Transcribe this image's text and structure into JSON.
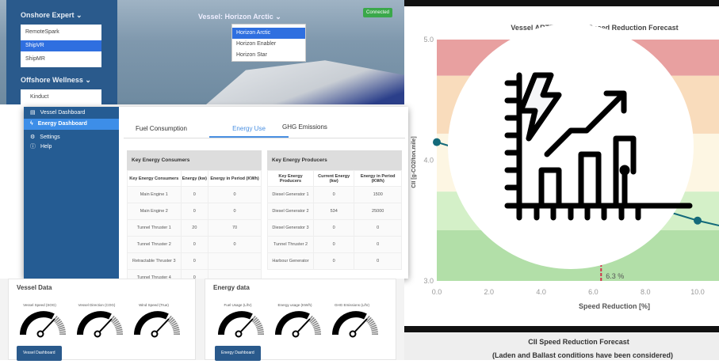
{
  "top": {
    "sections": [
      {
        "label": "Onshore Expert",
        "options": [
          "RemoteSpark",
          "ShipVR",
          "ShipMR"
        ],
        "selected": "ShipVR"
      },
      {
        "label": "Offshore Wellness",
        "options": [
          "Kinduct"
        ]
      }
    ],
    "vessel_label": "Vessel: Horizon Arctic",
    "vessel_options": [
      "Horizon Arctic",
      "Horizon Enabler",
      "Horizon Star"
    ],
    "vessel_selected": "Horizon Arctic",
    "status": "Connected"
  },
  "dashboard": {
    "nav": [
      {
        "label": "Vessel Dashboard",
        "icon": "ship-icon"
      },
      {
        "label": "Energy Dashboard",
        "icon": "bolt-icon",
        "active": true
      },
      {
        "label": "Settings",
        "icon": "gear-icon"
      },
      {
        "label": "Help",
        "icon": "help-icon"
      }
    ],
    "tabs": [
      "Fuel Consumption",
      "Energy Use",
      "GHG Emissions"
    ],
    "active_tab": "Energy Use",
    "consumers": {
      "title": "Key Energy Consumers",
      "headers": [
        "Key Energy Consumers",
        "Energy (kw)",
        "Energy in Period (KWh)"
      ],
      "rows": [
        [
          "Main Engine 1",
          "0",
          "0"
        ],
        [
          "Main Engine 2",
          "0",
          "0"
        ],
        [
          "Tunnel Thruster 1",
          "20",
          "70"
        ],
        [
          "Tunnel Thruster 2",
          "0",
          "0"
        ],
        [
          "Retractable Thruster 3",
          "0",
          ""
        ],
        [
          "Tunnel Thruster 4",
          "0",
          ""
        ]
      ]
    },
    "producers": {
      "title": "Key Energy Producers",
      "headers": [
        "Key Energy Producers",
        "Current Energy (kw)",
        "Energy in Period (KWh)"
      ],
      "rows": [
        [
          "Diesel Generator 1",
          "0",
          "1500"
        ],
        [
          "Diesel Generator 2",
          "534",
          "25000"
        ],
        [
          "Diesel Generator 3",
          "0",
          "0"
        ],
        [
          "Tunnel Thruster 2",
          "0",
          "0"
        ],
        [
          "Harbour Generator",
          "0",
          "0"
        ]
      ]
    }
  },
  "bottom": {
    "vessel": {
      "title": "Vessel  Data",
      "gauges": [
        "Vessel Speed (SOG)",
        "Vessel Direction (COG)",
        "Wind Speed (True)"
      ],
      "button": "Vessel Dashboard"
    },
    "energy": {
      "title": "Energy data",
      "gauges": [
        "Fuel Usage (L/hr)",
        "Energy usage (KW/h)",
        "GHG Emissions (L/hr)"
      ],
      "button": "Energy Dashboard"
    }
  },
  "chart_data": {
    "type": "line",
    "title": "Vessel ARTEMIS II: CII Speed Reduction Forecast",
    "xlabel": "Speed Reduction [%]",
    "ylabel": "CII [g-CO2/ton.mile]",
    "xlim": [
      0,
      11
    ],
    "ylim": [
      3.0,
      5.0
    ],
    "xticks": [
      "0.0",
      "2.0",
      "4.0",
      "6.0",
      "8.0",
      "10.0"
    ],
    "yticks": [
      "3.0",
      "4.0",
      "5.0"
    ],
    "bands": [
      {
        "from": 4.7,
        "to": 5.0,
        "color": "#e8a0a0"
      },
      {
        "from": 4.22,
        "to": 4.7,
        "color": "#f9dcbc"
      },
      {
        "from": 3.74,
        "to": 4.22,
        "color": "#fdf6e3"
      },
      {
        "from": 3.42,
        "to": 3.74,
        "color": "#d4f0c8"
      },
      {
        "from": 3.0,
        "to": 3.42,
        "color": "#b2dfa8"
      }
    ],
    "series": [
      {
        "x": [
          0,
          10,
          11
        ],
        "y": [
          4.15,
          3.5,
          3.45
        ],
        "color": "#146a7a"
      }
    ],
    "marker": {
      "x": 6.3,
      "label": "6.3 %",
      "color": "#d0304a"
    },
    "footer_title": "CII Speed Reduction Forecast",
    "footer_sub": "(Laden and Ballast conditions have been considered)"
  },
  "overlay_icon": "energy-growth-chart-icon"
}
